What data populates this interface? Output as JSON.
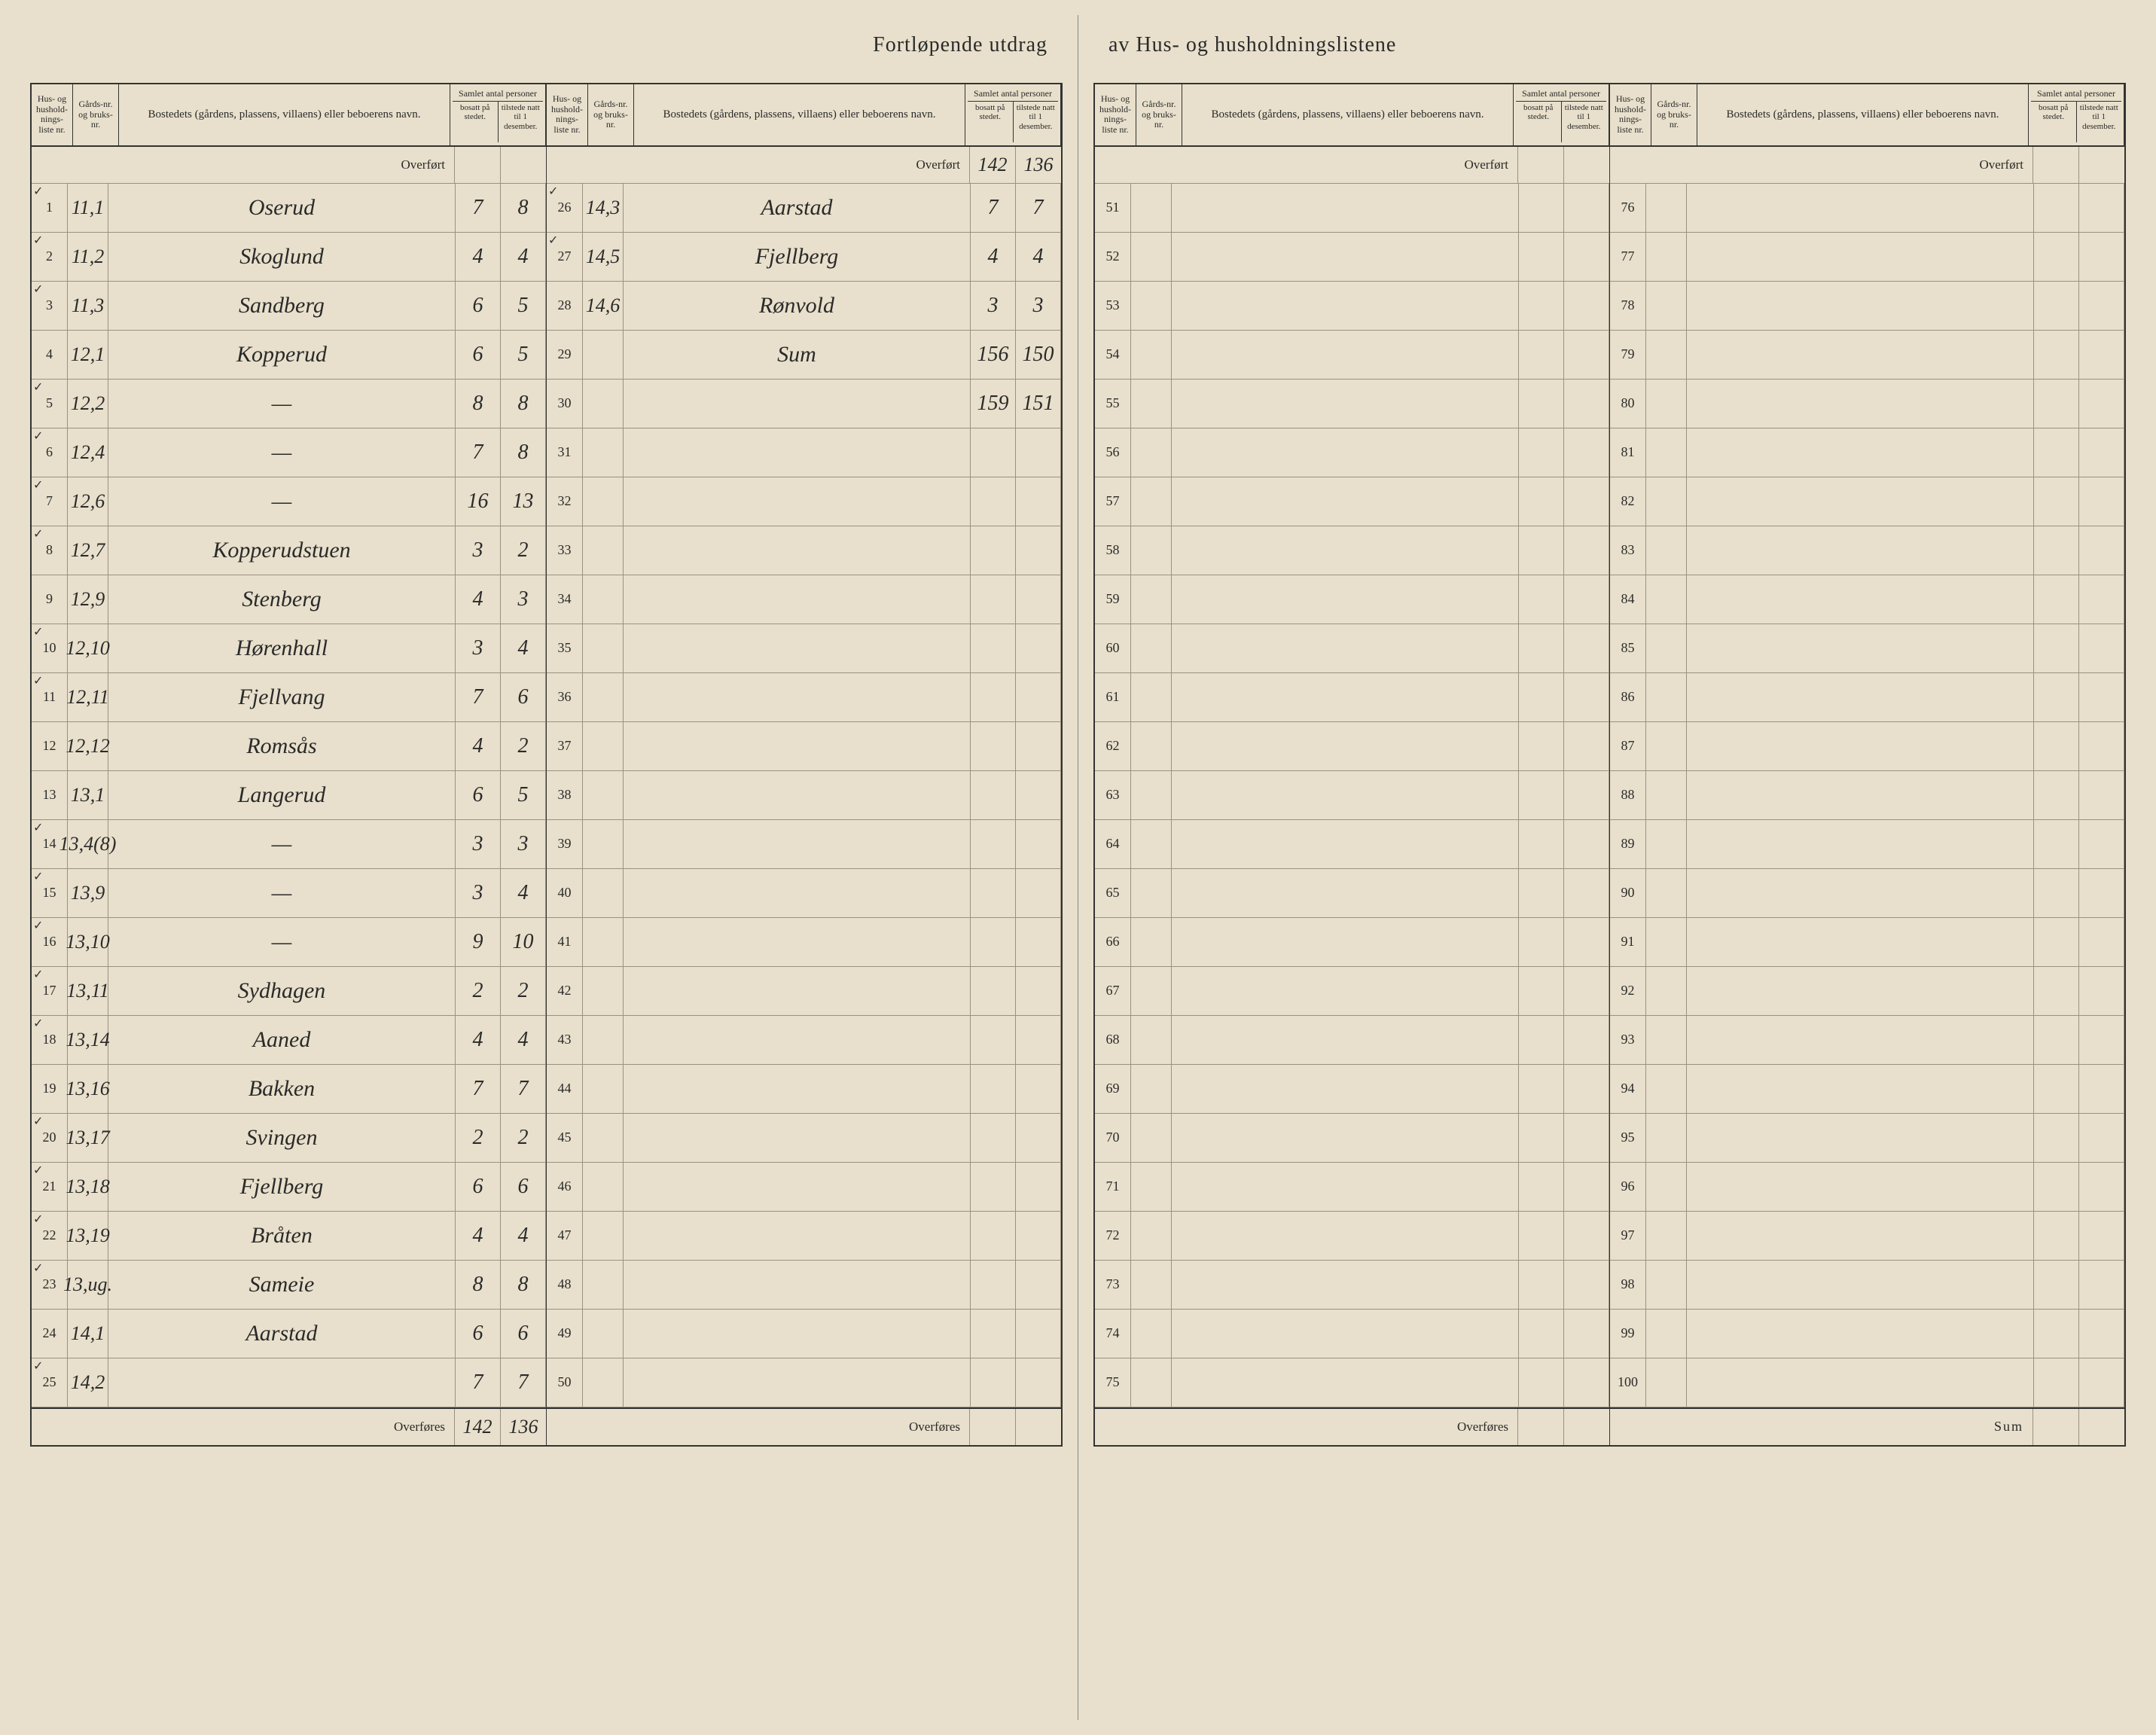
{
  "title_left": "Fortløpende utdrag",
  "title_right": "av Hus- og husholdningslistene",
  "headers": {
    "liste": "Hus- og hushold-nings-liste nr.",
    "gard": "Gårds-nr. og bruks-nr.",
    "navn": "Bostedets (gårdens, plassens, villaens) eller beboerens navn.",
    "samlet": "Samlet antal personer",
    "bosatt": "bosatt på stedet.",
    "tilstede": "tilstede natt til 1 desember."
  },
  "overfort": "Overført",
  "overfores": "Overføres",
  "sum": "Sum",
  "left_page": {
    "col1": {
      "overfort": {
        "bosatt": "",
        "tilstede": ""
      },
      "rows": [
        {
          "tick": true,
          "nr": "1",
          "gard": "11,1",
          "navn": "Oserud",
          "bosatt": "7",
          "tilstede": "8"
        },
        {
          "tick": true,
          "nr": "2",
          "gard": "11,2",
          "navn": "Skoglund",
          "bosatt": "4",
          "tilstede": "4"
        },
        {
          "tick": true,
          "nr": "3",
          "gard": "11,3",
          "navn": "Sandberg",
          "bosatt": "6",
          "tilstede": "5"
        },
        {
          "tick": false,
          "nr": "4",
          "gard": "12,1",
          "navn": "Kopperud",
          "bosatt": "6",
          "tilstede": "5"
        },
        {
          "tick": true,
          "nr": "5",
          "gard": "12,2",
          "navn": "—",
          "bosatt": "8",
          "tilstede": "8"
        },
        {
          "tick": true,
          "nr": "6",
          "gard": "12,4",
          "navn": "—",
          "bosatt": "7",
          "tilstede": "8"
        },
        {
          "tick": true,
          "nr": "7",
          "gard": "12,6",
          "navn": "—",
          "bosatt": "16",
          "tilstede": "13"
        },
        {
          "tick": true,
          "nr": "8",
          "gard": "12,7",
          "navn": "Kopperudstuen",
          "bosatt": "3",
          "tilstede": "2"
        },
        {
          "tick": false,
          "nr": "9",
          "gard": "12,9",
          "navn": "Stenberg",
          "bosatt": "4",
          "tilstede": "3"
        },
        {
          "tick": true,
          "nr": "10",
          "gard": "12,10",
          "navn": "Hørenhall",
          "bosatt": "3",
          "tilstede": "4"
        },
        {
          "tick": true,
          "nr": "11",
          "gard": "12,11",
          "navn": "Fjellvang",
          "bosatt": "7",
          "tilstede": "6"
        },
        {
          "tick": false,
          "nr": "12",
          "gard": "12,12",
          "navn": "Romsås",
          "bosatt": "4",
          "tilstede": "2"
        },
        {
          "tick": false,
          "nr": "13",
          "gard": "13,1",
          "navn": "Langerud",
          "bosatt": "6",
          "tilstede": "5"
        },
        {
          "tick": true,
          "nr": "14",
          "gard": "13,4(8)",
          "navn": "—",
          "bosatt": "3",
          "tilstede": "3"
        },
        {
          "tick": true,
          "nr": "15",
          "gard": "13,9",
          "navn": "—",
          "bosatt": "3",
          "tilstede": "4"
        },
        {
          "tick": true,
          "nr": "16",
          "gard": "13,10",
          "navn": "—",
          "bosatt": "9",
          "tilstede": "10"
        },
        {
          "tick": true,
          "nr": "17",
          "gard": "13,11",
          "navn": "Sydhagen",
          "bosatt": "2",
          "tilstede": "2"
        },
        {
          "tick": true,
          "nr": "18",
          "gard": "13,14",
          "navn": "Aaned",
          "bosatt": "4",
          "tilstede": "4"
        },
        {
          "tick": false,
          "nr": "19",
          "gard": "13,16",
          "navn": "Bakken",
          "bosatt": "7",
          "tilstede": "7"
        },
        {
          "tick": true,
          "nr": "20",
          "gard": "13,17",
          "navn": "Svingen",
          "bosatt": "2",
          "tilstede": "2"
        },
        {
          "tick": true,
          "nr": "21",
          "gard": "13,18",
          "navn": "Fjellberg",
          "bosatt": "6",
          "tilstede": "6"
        },
        {
          "tick": true,
          "nr": "22",
          "gard": "13,19",
          "navn": "Bråten",
          "bosatt": "4",
          "tilstede": "4"
        },
        {
          "tick": true,
          "nr": "23",
          "gard": "13,ug.",
          "navn": "Sameie",
          "bosatt": "8",
          "tilstede": "8"
        },
        {
          "tick": false,
          "nr": "24",
          "gard": "14,1",
          "navn": "Aarstad",
          "bosatt": "6",
          "tilstede": "6"
        },
        {
          "tick": true,
          "nr": "25",
          "gard": "14,2",
          "navn": "",
          "bosatt": "7",
          "tilstede": "7"
        }
      ],
      "overfores": {
        "bosatt": "142",
        "tilstede": "136"
      }
    },
    "col2": {
      "overfort": {
        "bosatt": "142",
        "tilstede": "136"
      },
      "rows": [
        {
          "tick": true,
          "nr": "26",
          "gard": "14,3",
          "navn": "Aarstad",
          "bosatt": "7",
          "tilstede": "7"
        },
        {
          "tick": true,
          "nr": "27",
          "gard": "14,5",
          "navn": "Fjellberg",
          "bosatt": "4",
          "tilstede": "4"
        },
        {
          "tick": false,
          "nr": "28",
          "gard": "14,6",
          "navn": "Rønvold",
          "bosatt": "3",
          "tilstede": "3"
        },
        {
          "tick": false,
          "nr": "29",
          "gard": "",
          "navn": "Sum",
          "bosatt": "156",
          "tilstede": "150"
        },
        {
          "tick": false,
          "nr": "30",
          "gard": "",
          "navn": "",
          "bosatt": "159",
          "tilstede": "151"
        },
        {
          "tick": false,
          "nr": "31",
          "gard": "",
          "navn": "",
          "bosatt": "",
          "tilstede": ""
        },
        {
          "tick": false,
          "nr": "32",
          "gard": "",
          "navn": "",
          "bosatt": "",
          "tilstede": ""
        },
        {
          "tick": false,
          "nr": "33",
          "gard": "",
          "navn": "",
          "bosatt": "",
          "tilstede": ""
        },
        {
          "tick": false,
          "nr": "34",
          "gard": "",
          "navn": "",
          "bosatt": "",
          "tilstede": ""
        },
        {
          "tick": false,
          "nr": "35",
          "gard": "",
          "navn": "",
          "bosatt": "",
          "tilstede": ""
        },
        {
          "tick": false,
          "nr": "36",
          "gard": "",
          "navn": "",
          "bosatt": "",
          "tilstede": ""
        },
        {
          "tick": false,
          "nr": "37",
          "gard": "",
          "navn": "",
          "bosatt": "",
          "tilstede": ""
        },
        {
          "tick": false,
          "nr": "38",
          "gard": "",
          "navn": "",
          "bosatt": "",
          "tilstede": ""
        },
        {
          "tick": false,
          "nr": "39",
          "gard": "",
          "navn": "",
          "bosatt": "",
          "tilstede": ""
        },
        {
          "tick": false,
          "nr": "40",
          "gard": "",
          "navn": "",
          "bosatt": "",
          "tilstede": ""
        },
        {
          "tick": false,
          "nr": "41",
          "gard": "",
          "navn": "",
          "bosatt": "",
          "tilstede": ""
        },
        {
          "tick": false,
          "nr": "42",
          "gard": "",
          "navn": "",
          "bosatt": "",
          "tilstede": ""
        },
        {
          "tick": false,
          "nr": "43",
          "gard": "",
          "navn": "",
          "bosatt": "",
          "tilstede": ""
        },
        {
          "tick": false,
          "nr": "44",
          "gard": "",
          "navn": "",
          "bosatt": "",
          "tilstede": ""
        },
        {
          "tick": false,
          "nr": "45",
          "gard": "",
          "navn": "",
          "bosatt": "",
          "tilstede": ""
        },
        {
          "tick": false,
          "nr": "46",
          "gard": "",
          "navn": "",
          "bosatt": "",
          "tilstede": ""
        },
        {
          "tick": false,
          "nr": "47",
          "gard": "",
          "navn": "",
          "bosatt": "",
          "tilstede": ""
        },
        {
          "tick": false,
          "nr": "48",
          "gard": "",
          "navn": "",
          "bosatt": "",
          "tilstede": ""
        },
        {
          "tick": false,
          "nr": "49",
          "gard": "",
          "navn": "",
          "bosatt": "",
          "tilstede": ""
        },
        {
          "tick": false,
          "nr": "50",
          "gard": "",
          "navn": "",
          "bosatt": "",
          "tilstede": ""
        }
      ],
      "overfores": {
        "bosatt": "",
        "tilstede": ""
      }
    }
  },
  "right_page": {
    "col1": {
      "overfort": {
        "bosatt": "",
        "tilstede": ""
      },
      "rows": [
        {
          "nr": "51"
        },
        {
          "nr": "52"
        },
        {
          "nr": "53"
        },
        {
          "nr": "54"
        },
        {
          "nr": "55"
        },
        {
          "nr": "56"
        },
        {
          "nr": "57"
        },
        {
          "nr": "58"
        },
        {
          "nr": "59"
        },
        {
          "nr": "60"
        },
        {
          "nr": "61"
        },
        {
          "nr": "62"
        },
        {
          "nr": "63"
        },
        {
          "nr": "64"
        },
        {
          "nr": "65"
        },
        {
          "nr": "66"
        },
        {
          "nr": "67"
        },
        {
          "nr": "68"
        },
        {
          "nr": "69"
        },
        {
          "nr": "70"
        },
        {
          "nr": "71"
        },
        {
          "nr": "72"
        },
        {
          "nr": "73"
        },
        {
          "nr": "74"
        },
        {
          "nr": "75"
        }
      ],
      "overfores": {
        "bosatt": "",
        "tilstede": ""
      }
    },
    "col2": {
      "overfort": {
        "bosatt": "",
        "tilstede": ""
      },
      "rows": [
        {
          "nr": "76"
        },
        {
          "nr": "77"
        },
        {
          "nr": "78"
        },
        {
          "nr": "79"
        },
        {
          "nr": "80"
        },
        {
          "nr": "81"
        },
        {
          "nr": "82"
        },
        {
          "nr": "83"
        },
        {
          "nr": "84"
        },
        {
          "nr": "85"
        },
        {
          "nr": "86"
        },
        {
          "nr": "87"
        },
        {
          "nr": "88"
        },
        {
          "nr": "89"
        },
        {
          "nr": "90"
        },
        {
          "nr": "91"
        },
        {
          "nr": "92"
        },
        {
          "nr": "93"
        },
        {
          "nr": "94"
        },
        {
          "nr": "95"
        },
        {
          "nr": "96"
        },
        {
          "nr": "97"
        },
        {
          "nr": "98"
        },
        {
          "nr": "99"
        },
        {
          "nr": "100"
        }
      ],
      "sum": {
        "bosatt": "",
        "tilstede": ""
      }
    }
  },
  "colors": {
    "paper": "#e8e0cc",
    "ink": "#2a2a2a",
    "rule_strong": "#333333",
    "rule_light": "#9a927e"
  }
}
